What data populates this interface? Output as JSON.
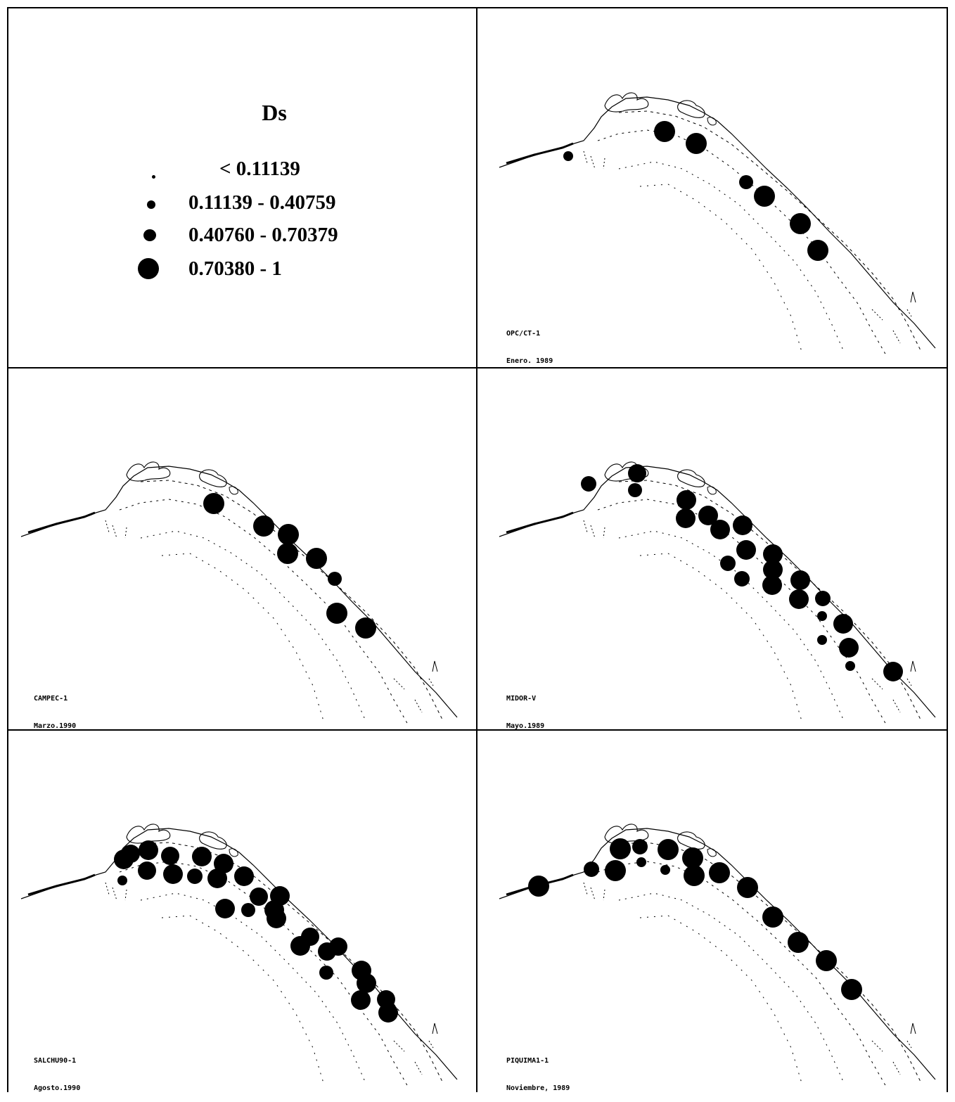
{
  "legend": {
    "title": "Ds",
    "classes": [
      {
        "size_class": 1,
        "range_text": "<  0.11139"
      },
      {
        "size_class": 2,
        "range_text": "0.11139  -  0.40759"
      },
      {
        "size_class": 3,
        "range_text": "0.40760  -  0.70379"
      },
      {
        "size_class": 4,
        "range_text": "0.70380  -  1"
      }
    ]
  },
  "panels": [
    {
      "id": "p1",
      "caption_line1": "OPC/CT-1",
      "caption_line2": "Enero. 1989"
    },
    {
      "id": "p2",
      "caption_line1": "CAMPEC-1",
      "caption_line2": "Marzo.1990"
    },
    {
      "id": "p3",
      "caption_line1": "MIDOR-V",
      "caption_line2": "Mayo.1989"
    },
    {
      "id": "p4",
      "caption_line1": "SALCHU90-1",
      "caption_line2": "Agosto.1990"
    },
    {
      "id": "p5",
      "caption_line1": "PIQUIMA1-1",
      "caption_line2": "Noviembre, 1989"
    }
  ]
}
